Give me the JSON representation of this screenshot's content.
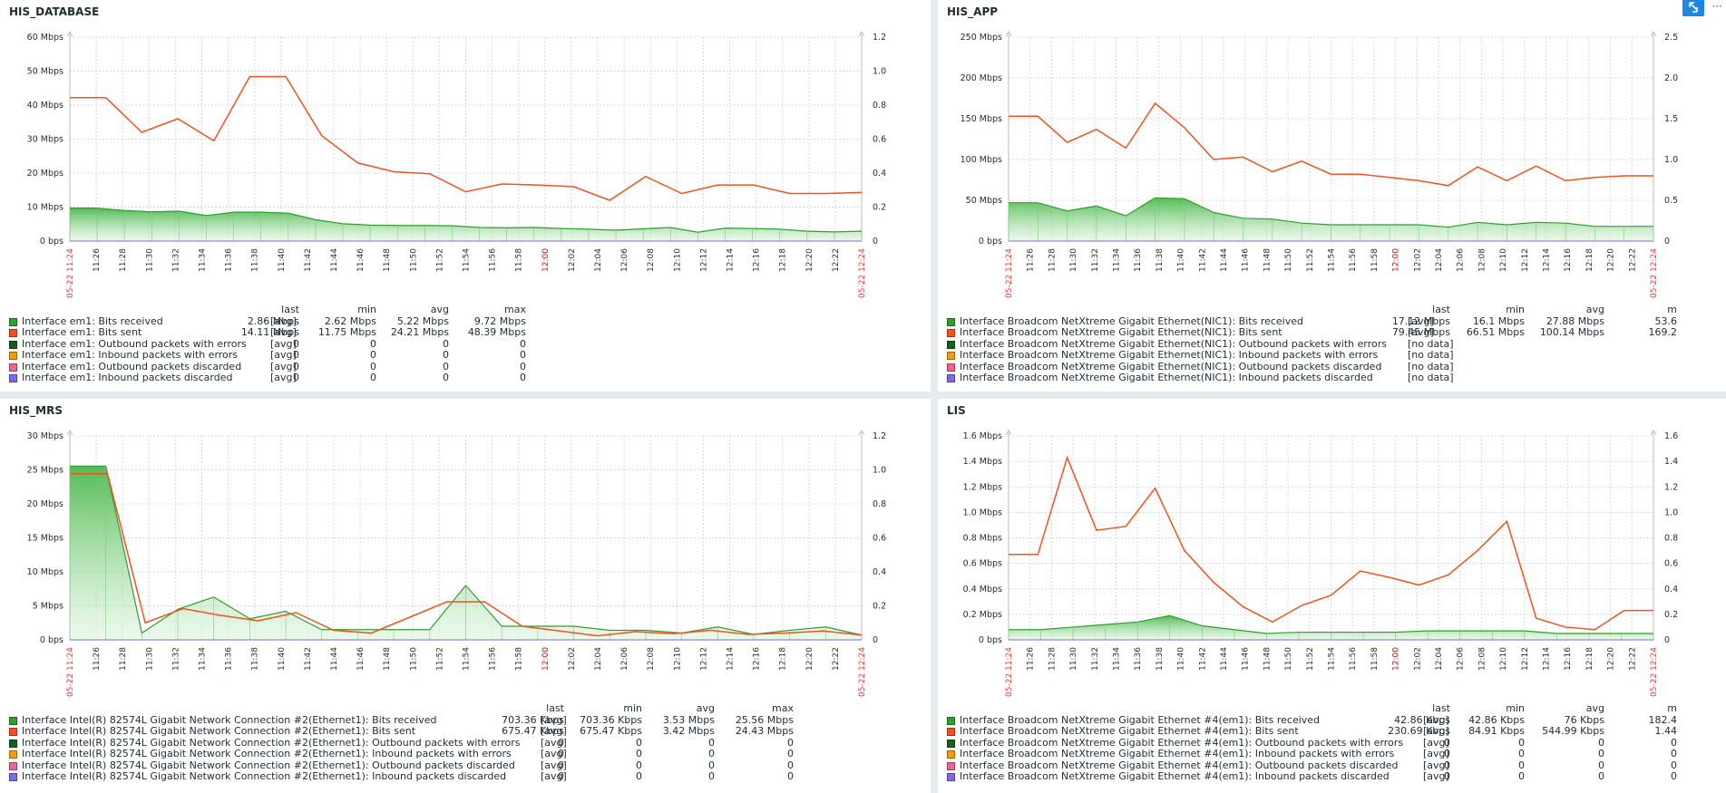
{
  "toolbar": {
    "more_label": "···"
  },
  "colors": {
    "received": "#2e9e2e",
    "sent": "#f4511e",
    "out_err": "#1b5e20",
    "in_err": "#f39c12",
    "out_disc": "#f06292",
    "in_disc": "#7b68ee"
  },
  "icons": {
    "fullscreen": "fullscreen-icon",
    "more": "more-icon"
  },
  "panels": [
    {
      "title": "HIS_DATABASE",
      "chart_data": {
        "type": "area",
        "x_ticks": [
          "11:24",
          "11:26",
          "11:28",
          "11:30",
          "11:32",
          "11:34",
          "11:36",
          "11:38",
          "11:40",
          "11:42",
          "11:44",
          "11:46",
          "11:48",
          "11:50",
          "11:52",
          "11:54",
          "11:56",
          "11:58",
          "12:00",
          "12:02",
          "12:04",
          "12:06",
          "12:08",
          "12:10",
          "12:12",
          "12:14",
          "12:16",
          "12:18",
          "12:20",
          "12:22",
          "12:24"
        ],
        "x_start_label": "05-22 11:24",
        "x_end_label": "05-22 12:24",
        "y_ticks": [
          "0 bps",
          "10 Mbps",
          "20 Mbps",
          "30 Mbps",
          "40 Mbps",
          "50 Mbps",
          "60 Mbps"
        ],
        "y_max": 60,
        "right_ticks": [
          "0",
          "0.2",
          "0.4",
          "0.6",
          "0.8",
          "1.0",
          "1.2"
        ],
        "series": [
          {
            "name": "Interface em1: Bits received",
            "type": "area",
            "values": [
              9.7,
              9.7,
              9.0,
              8.6,
              8.8,
              7.5,
              8.5,
              8.5,
              8.2,
              6.3,
              5.1,
              4.7,
              4.6,
              4.6,
              4.5,
              4.0,
              3.9,
              4.0,
              3.7,
              3.5,
              3.2,
              3.6,
              4.0,
              2.6,
              3.8,
              3.7,
              3.5,
              2.9,
              2.7,
              2.9
            ]
          },
          {
            "name": "Interface em1: Bits sent",
            "type": "line",
            "values": [
              42.2,
              42.2,
              32.0,
              36.0,
              29.5,
              48.4,
              48.4,
              31.0,
              23.0,
              20.4,
              19.8,
              14.5,
              16.8,
              16.5,
              16.0,
              12.0,
              19.0,
              14.0,
              16.5,
              16.5,
              14.0,
              14.0,
              14.3
            ]
          }
        ]
      },
      "legend_head": {
        "last": "last",
        "min": "min",
        "avg": "avg",
        "max": "max"
      },
      "legend": [
        {
          "name": "Interface em1: Bits received",
          "func": "[avg]",
          "last": "2.86 Mbps",
          "min": "2.62 Mbps",
          "avg": "5.22 Mbps",
          "max": "9.72 Mbps"
        },
        {
          "name": "Interface em1: Bits sent",
          "func": "[avg]",
          "last": "14.11 Mbps",
          "min": "11.75 Mbps",
          "avg": "24.21 Mbps",
          "max": "48.39 Mbps"
        },
        {
          "name": "Interface em1: Outbound packets with errors",
          "func": "[avg]",
          "last": "0",
          "min": "0",
          "avg": "0",
          "max": "0"
        },
        {
          "name": "Interface em1: Inbound packets with errors",
          "func": "[avg]",
          "last": "0",
          "min": "0",
          "avg": "0",
          "max": "0"
        },
        {
          "name": "Interface em1: Outbound packets discarded",
          "func": "[avg]",
          "last": "0",
          "min": "0",
          "avg": "0",
          "max": "0"
        },
        {
          "name": "Interface em1: Inbound packets discarded",
          "func": "[avg]",
          "last": "0",
          "min": "0",
          "avg": "0",
          "max": "0"
        }
      ]
    },
    {
      "title": "HIS_APP",
      "chart_data": {
        "type": "area",
        "x_ticks": [
          "11:24",
          "11:26",
          "11:28",
          "11:30",
          "11:32",
          "11:34",
          "11:36",
          "11:38",
          "11:40",
          "11:42",
          "11:44",
          "11:46",
          "11:48",
          "11:50",
          "11:52",
          "11:54",
          "11:56",
          "11:58",
          "12:00",
          "12:02",
          "12:04",
          "12:06",
          "12:08",
          "12:10",
          "12:12",
          "12:14",
          "12:16",
          "12:18",
          "12:20",
          "12:22",
          "12:24"
        ],
        "x_start_label": "05-22 11:24",
        "x_end_label": "05-22 12:24",
        "y_ticks": [
          "0 bps",
          "50 Mbps",
          "100 Mbps",
          "150 Mbps",
          "200 Mbps",
          "250 Mbps"
        ],
        "y_max": 250,
        "right_ticks": [
          "0",
          "0.5",
          "1.0",
          "1.5",
          "2.0",
          "2.5"
        ],
        "series": [
          {
            "name": "Interface Broadcom NetXtreme Gigabit Ethernet(NIC1): Bits received",
            "type": "area",
            "values": [
              47,
              47,
              37,
              43,
              31,
              53,
              52,
              35,
              28,
              27,
              22,
              20,
              20,
              20,
              20,
              17,
              23,
              20,
              23,
              22,
              18,
              18,
              18
            ]
          },
          {
            "name": "Interface Broadcom NetXtreme Gigabit Ethernet(NIC1): Bits sent",
            "type": "line",
            "values": [
              153,
              153,
              121,
              137,
              114,
              169,
              139,
              100,
              103,
              85,
              98,
              82,
              82,
              78,
              74,
              68,
              91,
              74,
              92,
              74,
              78,
              80,
              80
            ]
          }
        ]
      },
      "legend_head": {
        "last": "last",
        "min": "min",
        "avg": "avg",
        "max": "m"
      },
      "legend": [
        {
          "name": "Interface Broadcom NetXtreme Gigabit Ethernet(NIC1): Bits received",
          "func": "[avg]",
          "last": "17.12 Mbps",
          "min": "16.1 Mbps",
          "avg": "27.88 Mbps",
          "max": "53.6"
        },
        {
          "name": "Interface Broadcom NetXtreme Gigabit Ethernet(NIC1): Bits sent",
          "func": "[avg]",
          "last": "79.45 Mbps",
          "min": "66.51 Mbps",
          "avg": "100.14 Mbps",
          "max": "169.2"
        },
        {
          "name": "Interface Broadcom NetXtreme Gigabit Ethernet(NIC1): Outbound packets with errors",
          "func": "[no data]",
          "last": "",
          "min": "",
          "avg": "",
          "max": ""
        },
        {
          "name": "Interface Broadcom NetXtreme Gigabit Ethernet(NIC1): Inbound packets with errors",
          "func": "[no data]",
          "last": "",
          "min": "",
          "avg": "",
          "max": ""
        },
        {
          "name": "Interface Broadcom NetXtreme Gigabit Ethernet(NIC1): Outbound packets discarded",
          "func": "[no data]",
          "last": "",
          "min": "",
          "avg": "",
          "max": ""
        },
        {
          "name": "Interface Broadcom NetXtreme Gigabit Ethernet(NIC1): Inbound packets discarded",
          "func": "[no data]",
          "last": "",
          "min": "",
          "avg": "",
          "max": ""
        }
      ]
    },
    {
      "title": "HIS_MRS",
      "chart_data": {
        "type": "area",
        "x_ticks": [
          "11:24",
          "11:26",
          "11:28",
          "11:30",
          "11:32",
          "11:34",
          "11:36",
          "11:38",
          "11:40",
          "11:42",
          "11:44",
          "11:46",
          "11:48",
          "11:50",
          "11:52",
          "11:54",
          "11:56",
          "11:58",
          "12:00",
          "12:02",
          "12:04",
          "12:06",
          "12:08",
          "12:10",
          "12:12",
          "12:14",
          "12:16",
          "12:18",
          "12:20",
          "12:22",
          "12:24"
        ],
        "x_start_label": "05-22 11:24",
        "x_end_label": "05-22 12:24",
        "y_ticks": [
          "0 bps",
          "5 Mbps",
          "10 Mbps",
          "15 Mbps",
          "20 Mbps",
          "25 Mbps",
          "30 Mbps"
        ],
        "y_max": 30,
        "right_ticks": [
          "0",
          "0.2",
          "0.4",
          "0.6",
          "0.8",
          "1.0",
          "1.2"
        ],
        "series": [
          {
            "name": "Interface Intel(R) 82574L Gigabit Network Connection #2(Ethernet1): Bits received",
            "type": "area",
            "values": [
              25.56,
              25.56,
              1.0,
              4.5,
              6.3,
              3.1,
              4.2,
              1.5,
              1.5,
              1.5,
              1.5,
              8.0,
              2.0,
              2.0,
              2.0,
              1.4,
              1.4,
              1.0,
              1.9,
              0.8,
              1.4,
              1.9,
              0.7
            ]
          },
          {
            "name": "Interface Intel(R) 82574L Gigabit Network Connection #2(Ethernet1): Bits sent",
            "type": "line",
            "values": [
              24.43,
              24.43,
              2.5,
              4.6,
              3.6,
              2.8,
              4.0,
              1.4,
              1.0,
              3.3,
              5.6,
              5.6,
              2.0,
              1.3,
              0.6,
              1.2,
              0.9,
              1.4,
              0.8,
              1.0,
              1.3,
              0.7
            ]
          }
        ]
      },
      "legend_head": {
        "last": "last",
        "min": "min",
        "avg": "avg",
        "max": "max"
      },
      "legend": [
        {
          "name": "Interface Intel(R) 82574L Gigabit Network Connection #2(Ethernet1): Bits received",
          "func": "[avg]",
          "last": "703.36 Kbps",
          "min": "703.36 Kbps",
          "avg": "3.53 Mbps",
          "max": "25.56 Mbps"
        },
        {
          "name": "Interface Intel(R) 82574L Gigabit Network Connection #2(Ethernet1): Bits sent",
          "func": "[avg]",
          "last": "675.47 Kbps",
          "min": "675.47 Kbps",
          "avg": "3.42 Mbps",
          "max": "24.43 Mbps"
        },
        {
          "name": "Interface Intel(R) 82574L Gigabit Network Connection #2(Ethernet1): Outbound packets with errors",
          "func": "[avg]",
          "last": "0",
          "min": "0",
          "avg": "0",
          "max": "0"
        },
        {
          "name": "Interface Intel(R) 82574L Gigabit Network Connection #2(Ethernet1): Inbound packets with errors",
          "func": "[avg]",
          "last": "0",
          "min": "0",
          "avg": "0",
          "max": "0"
        },
        {
          "name": "Interface Intel(R) 82574L Gigabit Network Connection #2(Ethernet1): Outbound packets discarded",
          "func": "[avg]",
          "last": "0",
          "min": "0",
          "avg": "0",
          "max": "0"
        },
        {
          "name": "Interface Intel(R) 82574L Gigabit Network Connection #2(Ethernet1): Inbound packets discarded",
          "func": "[avg]",
          "last": "0",
          "min": "0",
          "avg": "0",
          "max": "0"
        }
      ]
    },
    {
      "title": "LIS",
      "chart_data": {
        "type": "area",
        "x_ticks": [
          "11:24",
          "11:26",
          "11:28",
          "11:30",
          "11:32",
          "11:34",
          "11:36",
          "11:38",
          "11:40",
          "11:42",
          "11:44",
          "11:46",
          "11:48",
          "11:50",
          "11:52",
          "11:54",
          "11:56",
          "11:58",
          "12:00",
          "12:02",
          "12:04",
          "12:06",
          "12:08",
          "12:10",
          "12:12",
          "12:14",
          "12:16",
          "12:18",
          "12:20",
          "12:22",
          "12:24"
        ],
        "x_start_label": "05-22 11:24",
        "x_end_label": "05-22 12:24",
        "y_ticks": [
          "0 bps",
          "0.2 Mbps",
          "0.4 Mbps",
          "0.6 Mbps",
          "0.8 Mbps",
          "1.0 Mbps",
          "1.2 Mbps",
          "1.4 Mbps",
          "1.6 Mbps"
        ],
        "y_max": 1.6,
        "right_ticks": [
          "0",
          "0.2",
          "0.4",
          "0.6",
          "0.8",
          "1.0",
          "1.2",
          "1.4",
          "1.6"
        ],
        "series": [
          {
            "name": "Interface Broadcom NetXtreme Gigabit Ethernet #4(em1): Bits received",
            "type": "area",
            "values": [
              0.08,
              0.08,
              0.1,
              0.12,
              0.14,
              0.19,
              0.11,
              0.08,
              0.05,
              0.06,
              0.06,
              0.06,
              0.06,
              0.07,
              0.07,
              0.07,
              0.07,
              0.05,
              0.05,
              0.05,
              0.05
            ]
          },
          {
            "name": "Interface Broadcom NetXtreme Gigabit Ethernet #4(em1): Bits sent",
            "type": "line",
            "values": [
              0.67,
              0.67,
              1.43,
              0.86,
              0.89,
              1.19,
              0.7,
              0.45,
              0.26,
              0.14,
              0.27,
              0.35,
              0.54,
              0.49,
              0.43,
              0.51,
              0.7,
              0.93,
              0.17,
              0.1,
              0.08,
              0.23,
              0.23
            ]
          }
        ]
      },
      "legend_head": {
        "last": "last",
        "min": "min",
        "avg": "avg",
        "max": "m"
      },
      "legend": [
        {
          "name": "Interface Broadcom NetXtreme Gigabit Ethernet #4(em1): Bits received",
          "func": "[avg]",
          "last": "42.86 Kbps",
          "min": "42.86 Kbps",
          "avg": "76 Kbps",
          "max": "182.4"
        },
        {
          "name": "Interface Broadcom NetXtreme Gigabit Ethernet #4(em1): Bits sent",
          "func": "[avg]",
          "last": "230.69 Kbps",
          "min": "84.91 Kbps",
          "avg": "544.99 Kbps",
          "max": "1.44"
        },
        {
          "name": "Interface Broadcom NetXtreme Gigabit Ethernet #4(em1): Outbound packets with errors",
          "func": "[avg]",
          "last": "0",
          "min": "0",
          "avg": "0",
          "max": "0"
        },
        {
          "name": "Interface Broadcom NetXtreme Gigabit Ethernet #4(em1): Inbound packets with errors",
          "func": "[avg]",
          "last": "0",
          "min": "0",
          "avg": "0",
          "max": "0"
        },
        {
          "name": "Interface Broadcom NetXtreme Gigabit Ethernet #4(em1): Outbound packets discarded",
          "func": "[avg]",
          "last": "0",
          "min": "0",
          "avg": "0",
          "max": "0"
        },
        {
          "name": "Interface Broadcom NetXtreme Gigabit Ethernet #4(em1): Inbound packets discarded",
          "func": "[avg]",
          "last": "0",
          "min": "0",
          "avg": "0",
          "max": "0"
        }
      ]
    }
  ]
}
